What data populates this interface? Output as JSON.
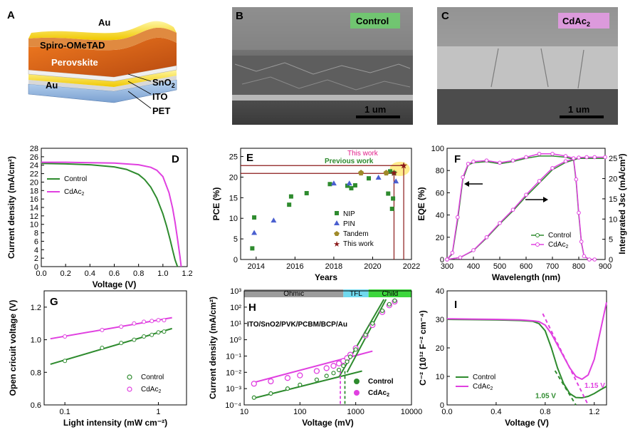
{
  "colors": {
    "control": "#2e8b2e",
    "cdac2": "#e040e0",
    "maroon": "#8b1a1a"
  },
  "panel_a": {
    "label": "A",
    "layers": [
      "Au",
      "Spiro-OMeTAD",
      "Perovskite",
      "SnO2",
      "ITO",
      "PET",
      "Au"
    ],
    "au_top": "Au",
    "spiro": "Spiro-OMeTAD",
    "perovskite": "Perovskite",
    "sno2_base": "SnO",
    "sno2_sub": "2",
    "ito": "ITO",
    "pet": "PET",
    "au_bottom": "Au"
  },
  "panel_b": {
    "label": "B",
    "tag": "Control",
    "scale": "1 um"
  },
  "panel_c": {
    "label": "C",
    "tag_base": "CdAc",
    "tag_sub": "2",
    "scale": "1 um"
  },
  "chart_data": [
    {
      "panel": "D",
      "type": "line",
      "xlabel": "Voltage (V)",
      "ylabel": "Current density (mA/cm²)",
      "xlim": [
        0,
        1.2
      ],
      "ylim": [
        0,
        28
      ],
      "xticks": [
        "0.0",
        "0.2",
        "0.4",
        "0.6",
        "0.8",
        "1.0",
        "1.2"
      ],
      "yticks": [
        "0",
        "2",
        "4",
        "6",
        "8",
        "10",
        "12",
        "14",
        "16",
        "18",
        "20",
        "22",
        "24",
        "26",
        "28"
      ],
      "legend": [
        "Control",
        "CdAc2"
      ],
      "series": [
        {
          "name": "Control",
          "x": [
            0,
            0.2,
            0.4,
            0.6,
            0.7,
            0.8,
            0.85,
            0.9,
            0.95,
            1.0,
            1.03,
            1.06,
            1.08,
            1.1,
            1.12
          ],
          "y": [
            24.4,
            24.3,
            24.1,
            23.6,
            23.0,
            21.8,
            20.6,
            18.8,
            16.2,
            12.5,
            9.6,
            6.3,
            3.9,
            1.6,
            0
          ]
        },
        {
          "name": "CdAc2",
          "x": [
            0,
            0.2,
            0.4,
            0.6,
            0.8,
            0.9,
            0.95,
            1.0,
            1.05,
            1.08,
            1.1,
            1.12,
            1.14,
            1.15
          ],
          "y": [
            24.7,
            24.7,
            24.6,
            24.5,
            24.1,
            23.5,
            22.8,
            21.3,
            17.5,
            13.8,
            10.5,
            6.6,
            2.4,
            0
          ]
        }
      ]
    },
    {
      "panel": "E",
      "type": "scatter",
      "xlabel": "Years",
      "ylabel": "PCE (%)",
      "xlim": [
        2013.2,
        2022
      ],
      "ylim": [
        0,
        27
      ],
      "xticks": [
        "2014",
        "2016",
        "2018",
        "2020",
        "2022"
      ],
      "yticks": [
        "0",
        "5",
        "10",
        "15",
        "20",
        "25"
      ],
      "annotations": [
        "This work",
        "Previous work"
      ],
      "legend": [
        "NIP",
        "PIN",
        "Tandem",
        "This work"
      ],
      "series": [
        {
          "name": "NIP",
          "x": [
            2013.8,
            2013.9,
            2015.7,
            2015.8,
            2016.6,
            2017.8,
            2018.7,
            2018.9,
            2019.1,
            2019.8,
            2020.8,
            2021.0,
            2021.05,
            2021.1,
            2020.9
          ],
          "y": [
            2.7,
            10.2,
            13.3,
            15.3,
            16.1,
            18.3,
            17.9,
            17.3,
            18.0,
            19.7,
            16.0,
            12.3,
            14.8,
            21.0,
            21.4
          ]
        },
        {
          "name": "PIN",
          "x": [
            2013.9,
            2014.9,
            2018.0,
            2018.8,
            2020.3,
            2021.2
          ],
          "y": [
            6.5,
            9.5,
            18.5,
            18.5,
            19.9,
            19.0
          ]
        },
        {
          "name": "Tandem",
          "x": [
            2019.4,
            2020.7
          ],
          "y": [
            21.1,
            21.1
          ]
        },
        {
          "name": "This work",
          "x": [
            2021.1,
            2021.6
          ],
          "y": [
            20.9,
            22.8
          ]
        }
      ]
    },
    {
      "panel": "F",
      "type": "line",
      "xlabel": "Wavelength (nm)",
      "ylabel": "EQE (%)",
      "y2label": "Intergrated Jsc (mA/cm²)",
      "xlim": [
        300,
        900
      ],
      "ylim": [
        0,
        100
      ],
      "y2lim": [
        0,
        27.5
      ],
      "xticks": [
        "300",
        "400",
        "500",
        "600",
        "700",
        "800",
        "900"
      ],
      "yticks": [
        "0",
        "20",
        "40",
        "60",
        "80",
        "100"
      ],
      "y2ticks": [
        "0",
        "5",
        "10",
        "15",
        "20",
        "25"
      ],
      "legend": [
        "Control",
        "CdAc2"
      ],
      "series": [
        {
          "name": "Control EQE",
          "x": [
            300,
            320,
            340,
            360,
            380,
            400,
            450,
            500,
            550,
            600,
            650,
            700,
            750,
            780,
            790,
            800,
            810,
            820,
            840,
            860
          ],
          "y": [
            0,
            5,
            35,
            72,
            85,
            87,
            88,
            86,
            88,
            91,
            93,
            93,
            92,
            90,
            70,
            40,
            15,
            3,
            0,
            0
          ]
        },
        {
          "name": "CdAc2 EQE",
          "x": [
            300,
            320,
            340,
            360,
            380,
            400,
            450,
            500,
            550,
            600,
            650,
            700,
            750,
            780,
            790,
            800,
            810,
            820,
            840,
            860
          ],
          "y": [
            0,
            6,
            38,
            74,
            86,
            88,
            89,
            87,
            89,
            92,
            95,
            95,
            93,
            91,
            72,
            42,
            16,
            3,
            0,
            0
          ]
        },
        {
          "name": "Control Jsc",
          "x": [
            300,
            350,
            400,
            450,
            500,
            550,
            600,
            650,
            700,
            750,
            800,
            830,
            860,
            900
          ],
          "y": [
            0,
            0.5,
            2.2,
            5.3,
            8.8,
            12.0,
            15.6,
            18.9,
            22.2,
            24.0,
            25.0,
            25.0,
            25.0,
            25.0
          ]
        },
        {
          "name": "CdAc2 Jsc",
          "x": [
            300,
            350,
            400,
            450,
            500,
            550,
            600,
            650,
            700,
            750,
            800,
            830,
            860,
            900
          ],
          "y": [
            0,
            0.5,
            2.3,
            5.5,
            9.0,
            12.3,
            16.0,
            19.4,
            22.6,
            24.3,
            25.2,
            25.3,
            25.3,
            25.3
          ]
        }
      ]
    },
    {
      "panel": "G",
      "type": "scatter",
      "xlabel": "Light intensity (mW cm⁻²)",
      "ylabel": "Open cricuit voltage (V)",
      "xscale": "log",
      "xlim": [
        0.06,
        2
      ],
      "ylim": [
        0.6,
        1.3
      ],
      "xticks": [
        "0.1",
        "1"
      ],
      "yticks": [
        "0.6",
        "0.8",
        "1.0",
        "1.2"
      ],
      "legend": [
        "Control",
        "CdAc2"
      ],
      "series": [
        {
          "name": "Control",
          "x": [
            0.1,
            0.25,
            0.4,
            0.55,
            0.7,
            0.85,
            1.0,
            1.15
          ],
          "y": [
            0.87,
            0.95,
            0.98,
            1.0,
            1.02,
            1.03,
            1.045,
            1.05
          ]
        },
        {
          "name": "CdAc2",
          "x": [
            0.1,
            0.25,
            0.4,
            0.55,
            0.7,
            0.85,
            1.0,
            1.15
          ],
          "y": [
            1.02,
            1.06,
            1.08,
            1.1,
            1.11,
            1.115,
            1.12,
            1.12
          ]
        }
      ]
    },
    {
      "panel": "H",
      "type": "scatter",
      "xlabel": "Voltage (mV)",
      "ylabel": "Current density (mA/cm²)",
      "annotation": "ITO/SnO2/PVK/PCBM/BCP/Au",
      "regions": [
        "Ohmic",
        "TFL",
        "Child"
      ],
      "xscale": "log",
      "yscale": "log",
      "xlim": [
        10,
        10000
      ],
      "ylim": [
        0.0001,
        1000
      ],
      "xticks": [
        "10",
        "100",
        "1000",
        "10000"
      ],
      "yticks": [
        "10⁻⁴",
        "10⁻³",
        "10⁻²",
        "10⁻¹",
        "10⁰",
        "10¹",
        "10²",
        "10³"
      ],
      "legend": [
        "Control",
        "CdAc2"
      ],
      "series": [
        {
          "name": "Control",
          "x": [
            15,
            30,
            60,
            100,
            200,
            300,
            400,
            500,
            600,
            700,
            800,
            1000,
            1500,
            2000,
            3000,
            4000,
            5000
          ],
          "y": [
            0.00028,
            0.0005,
            0.001,
            0.0017,
            0.0035,
            0.006,
            0.009,
            0.014,
            0.025,
            0.045,
            0.09,
            0.25,
            2,
            10,
            60,
            150,
            250
          ]
        },
        {
          "name": "CdAc2",
          "x": [
            15,
            30,
            60,
            100,
            200,
            300,
            400,
            500,
            600,
            700,
            800,
            1000,
            1500,
            2000,
            3000,
            4000,
            5000
          ],
          "y": [
            0.002,
            0.0028,
            0.0045,
            0.0065,
            0.012,
            0.018,
            0.025,
            0.035,
            0.05,
            0.075,
            0.12,
            0.3,
            1.8,
            8,
            50,
            130,
            220
          ]
        }
      ]
    },
    {
      "panel": "I",
      "type": "line",
      "xlabel": "Voltage (V)",
      "ylabel": "C⁻² (10¹² F⁻² cm⁻⁴)",
      "xlim": [
        0,
        1.3
      ],
      "ylim": [
        0,
        40
      ],
      "xticks": [
        "0.0",
        "0.4",
        "0.8",
        "1.2"
      ],
      "yticks": [
        "0",
        "10",
        "20",
        "30",
        "40"
      ],
      "annotations": [
        "1.05 V",
        "1.15 V"
      ],
      "legend": [
        "Control",
        "CdAc2"
      ],
      "series": [
        {
          "name": "Control",
          "x": [
            0,
            0.2,
            0.4,
            0.6,
            0.7,
            0.75,
            0.8,
            0.85,
            0.9,
            0.95,
            1.0,
            1.05,
            1.1,
            1.15,
            1.2,
            1.25,
            1.3
          ],
          "y": [
            30,
            29.9,
            29.8,
            29.6,
            29.3,
            28.5,
            26,
            20,
            13,
            7.5,
            4,
            2.6,
            2.5,
            3,
            4,
            5.3,
            6.5
          ]
        },
        {
          "name": "CdAc2",
          "x": [
            0,
            0.2,
            0.4,
            0.6,
            0.7,
            0.75,
            0.8,
            0.85,
            0.9,
            0.95,
            1.0,
            1.05,
            1.1,
            1.15,
            1.2,
            1.25,
            1.3
          ],
          "y": [
            30.2,
            30.1,
            30,
            29.8,
            29.5,
            29.2,
            28,
            25,
            21,
            17,
            13,
            10,
            9,
            10.5,
            16,
            26,
            36
          ]
        }
      ]
    }
  ]
}
